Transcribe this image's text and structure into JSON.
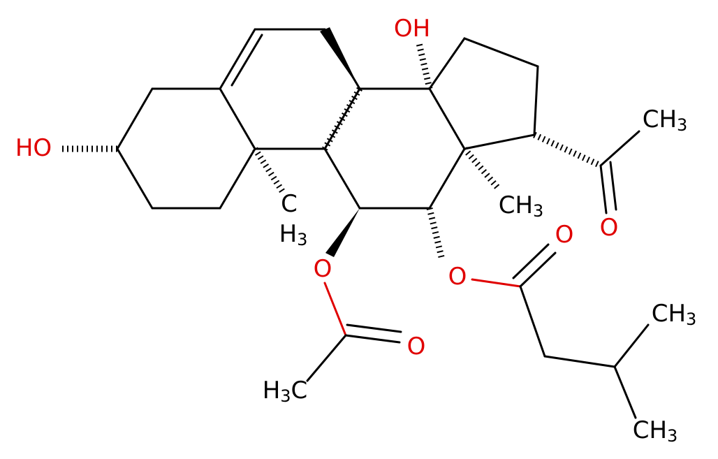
{
  "nodes": [
    {
      "text": "OH"
    },
    {
      "text": "HO"
    },
    {
      "text": "CH",
      "sub": "3"
    },
    {
      "text": "O"
    },
    {
      "text": "CH",
      "sub": "3"
    },
    {
      "text": "C"
    },
    {
      "text": "H",
      "sub": "3"
    },
    {
      "text": "O"
    },
    {
      "text": "O"
    },
    {
      "text": "O"
    },
    {
      "text": "O"
    },
    {
      "text": "H",
      "sub": "3",
      "tail": "C"
    },
    {
      "text": "CH",
      "sub": "3"
    },
    {
      "text": "CH",
      "sub": "3"
    }
  ]
}
